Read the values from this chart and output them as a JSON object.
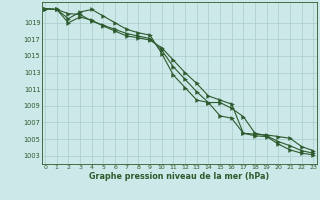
{
  "title": "Graphe pression niveau de la mer (hPa)",
  "bg_color": "#cce8e8",
  "grid_color": "#aacccc",
  "line_color": "#2d5a2d",
  "xmin": 0,
  "xmax": 23,
  "ymin": 1002,
  "ymax": 1021.5,
  "yticks": [
    1003,
    1005,
    1007,
    1009,
    1011,
    1013,
    1015,
    1017,
    1019
  ],
  "xticks": [
    0,
    1,
    2,
    3,
    4,
    5,
    6,
    7,
    8,
    9,
    10,
    11,
    12,
    13,
    14,
    15,
    16,
    17,
    18,
    19,
    20,
    21,
    22,
    23
  ],
  "series1_x": [
    0,
    1,
    2,
    3,
    4,
    5,
    6,
    7,
    8,
    9,
    10,
    11,
    12,
    13,
    14,
    15,
    16,
    17,
    18,
    19,
    20,
    21,
    22,
    23
  ],
  "series1_y": [
    1020.7,
    1020.6,
    1019.5,
    1020.3,
    1020.6,
    1019.8,
    1019.0,
    1018.2,
    1017.8,
    1017.5,
    1015.3,
    1012.7,
    1011.2,
    1009.7,
    1009.4,
    1007.8,
    1007.5,
    1005.7,
    1005.4,
    1005.3,
    1004.4,
    1003.7,
    1003.3,
    1003.1
  ],
  "series2_x": [
    0,
    1,
    2,
    3,
    4,
    5,
    6,
    7,
    8,
    9,
    10,
    11,
    12,
    13,
    14,
    15,
    16,
    17,
    18,
    19,
    20,
    21,
    22,
    23
  ],
  "series2_y": [
    1020.7,
    1020.6,
    1019.0,
    1019.7,
    1019.3,
    1018.6,
    1018.0,
    1017.4,
    1017.2,
    1016.9,
    1016.0,
    1014.5,
    1013.0,
    1011.7,
    1010.2,
    1009.7,
    1009.2,
    1005.7,
    1005.6,
    1005.5,
    1005.3,
    1005.1,
    1004.1,
    1003.6
  ],
  "series3_x": [
    0,
    1,
    2,
    3,
    4,
    5,
    6,
    7,
    8,
    9,
    10,
    11,
    12,
    13,
    14,
    15,
    16,
    17,
    18,
    19,
    20,
    21,
    22,
    23
  ],
  "series3_y": [
    1020.7,
    1020.6,
    1020.1,
    1020.0,
    1019.2,
    1018.7,
    1018.2,
    1017.7,
    1017.4,
    1017.1,
    1015.7,
    1013.7,
    1012.2,
    1010.7,
    1009.4,
    1009.4,
    1008.7,
    1007.7,
    1005.7,
    1005.4,
    1004.7,
    1004.2,
    1003.6,
    1003.3
  ]
}
